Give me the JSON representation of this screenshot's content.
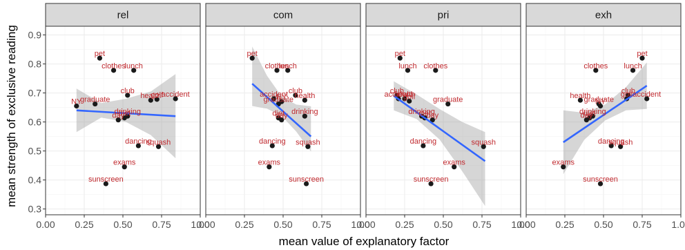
{
  "chart_data": {
    "type": "scatter",
    "facet_labels": [
      "rel",
      "com",
      "pri",
      "exh"
    ],
    "xlabel": "mean value of explanatory factor",
    "ylabel": "mean strength of exclusive reading",
    "xlim": [
      0,
      1
    ],
    "ylim": [
      0.28,
      0.93
    ],
    "xticks": [
      0,
      0.25,
      0.5,
      0.75,
      1
    ],
    "xtick_labels": [
      "0.00",
      "0.25",
      "0.50",
      "0.75",
      "1.00"
    ],
    "yticks": [
      0.3,
      0.4,
      0.5,
      0.6,
      0.7,
      0.8,
      0.9
    ],
    "ytick_labels": [
      "0.3",
      "0.4",
      "0.5",
      "0.6",
      "0.7",
      "0.8",
      "0.9"
    ],
    "colors": {
      "point": "#1a1a1a",
      "label": "#c0292e",
      "fit": "#3366ff",
      "ribbon": "#999999"
    },
    "panels": [
      {
        "name": "rel",
        "points": [
          {
            "label": "NY",
            "x": 0.2,
            "y": 0.655
          },
          {
            "label": "graduate",
            "x": 0.32,
            "y": 0.662
          },
          {
            "label": "pet",
            "x": 0.35,
            "y": 0.82
          },
          {
            "label": "clothes",
            "x": 0.44,
            "y": 0.778
          },
          {
            "label": "lunch",
            "x": 0.57,
            "y": 0.778
          },
          {
            "label": "club",
            "x": 0.53,
            "y": 0.692
          },
          {
            "label": "health",
            "x": 0.68,
            "y": 0.675
          },
          {
            "label": "golf",
            "x": 0.72,
            "y": 0.678
          },
          {
            "label": "accident",
            "x": 0.84,
            "y": 0.68
          },
          {
            "label": "drinking",
            "x": 0.53,
            "y": 0.62
          },
          {
            "label": "diet",
            "x": 0.51,
            "y": 0.614
          },
          {
            "label": "day",
            "x": 0.47,
            "y": 0.607
          },
          {
            "label": "dancing",
            "x": 0.6,
            "y": 0.518
          },
          {
            "label": "squash",
            "x": 0.73,
            "y": 0.515
          },
          {
            "label": "exams",
            "x": 0.51,
            "y": 0.445
          },
          {
            "label": "sunscreen",
            "x": 0.39,
            "y": 0.387
          }
        ],
        "fit": {
          "x": [
            0.2,
            0.84
          ],
          "y": [
            0.64,
            0.62
          ]
        },
        "ribbon": {
          "x": [
            0.2,
            0.36,
            0.52,
            0.68,
            0.84
          ],
          "lower": [
            0.565,
            0.615,
            0.6,
            0.555,
            0.475
          ],
          "upper": [
            0.715,
            0.665,
            0.68,
            0.705,
            0.765
          ]
        }
      },
      {
        "name": "com",
        "points": [
          {
            "label": "pet",
            "x": 0.3,
            "y": 0.82
          },
          {
            "label": "clothes",
            "x": 0.46,
            "y": 0.778
          },
          {
            "label": "lunch",
            "x": 0.53,
            "y": 0.778
          },
          {
            "label": "club",
            "x": 0.58,
            "y": 0.692
          },
          {
            "label": "accident",
            "x": 0.44,
            "y": 0.68
          },
          {
            "label": "health",
            "x": 0.64,
            "y": 0.675
          },
          {
            "label": "NY",
            "x": 0.49,
            "y": 0.67
          },
          {
            "label": "graduate",
            "x": 0.47,
            "y": 0.662
          },
          {
            "label": "diet",
            "x": 0.47,
            "y": 0.614
          },
          {
            "label": "drinking",
            "x": 0.64,
            "y": 0.62
          },
          {
            "label": "day",
            "x": 0.49,
            "y": 0.607
          },
          {
            "label": "dancing",
            "x": 0.43,
            "y": 0.518
          },
          {
            "label": "squash",
            "x": 0.66,
            "y": 0.515
          },
          {
            "label": "exams",
            "x": 0.41,
            "y": 0.445
          },
          {
            "label": "sunscreen",
            "x": 0.65,
            "y": 0.387
          }
        ],
        "fit": {
          "x": [
            0.3,
            0.68
          ],
          "y": [
            0.732,
            0.55
          ]
        },
        "ribbon": {
          "x": [
            0.3,
            0.395,
            0.49,
            0.585,
            0.68
          ],
          "lower": [
            0.655,
            0.646,
            0.621,
            0.567,
            0.498
          ],
          "upper": [
            0.86,
            0.76,
            0.688,
            0.66,
            0.654
          ]
        }
      },
      {
        "name": "pri",
        "points": [
          {
            "label": "pet",
            "x": 0.22,
            "y": 0.82
          },
          {
            "label": "lunch",
            "x": 0.27,
            "y": 0.778
          },
          {
            "label": "clothes",
            "x": 0.45,
            "y": 0.778
          },
          {
            "label": "club",
            "x": 0.2,
            "y": 0.692
          },
          {
            "label": "accident",
            "x": 0.21,
            "y": 0.68
          },
          {
            "label": "health",
            "x": 0.25,
            "y": 0.68
          },
          {
            "label": "golf",
            "x": 0.28,
            "y": 0.672
          },
          {
            "label": "graduate",
            "x": 0.53,
            "y": 0.662
          },
          {
            "label": "drinking",
            "x": 0.36,
            "y": 0.62
          },
          {
            "label": "diet",
            "x": 0.38,
            "y": 0.614
          },
          {
            "label": "day",
            "x": 0.43,
            "y": 0.607
          },
          {
            "label": "dancing",
            "x": 0.37,
            "y": 0.518
          },
          {
            "label": "squash",
            "x": 0.76,
            "y": 0.515
          },
          {
            "label": "exams",
            "x": 0.57,
            "y": 0.445
          },
          {
            "label": "sunscreen",
            "x": 0.42,
            "y": 0.387
          }
        ],
        "fit": {
          "x": [
            0.18,
            0.77
          ],
          "y": [
            0.69,
            0.465
          ]
        },
        "ribbon": {
          "x": [
            0.18,
            0.3275,
            0.475,
            0.6225,
            0.77
          ],
          "lower": [
            0.64,
            0.61,
            0.54,
            0.43,
            0.31
          ],
          "upper": [
            0.74,
            0.695,
            0.645,
            0.6,
            0.565
          ]
        }
      },
      {
        "name": "exh",
        "points": [
          {
            "label": "pet",
            "x": 0.75,
            "y": 0.82
          },
          {
            "label": "clothes",
            "x": 0.45,
            "y": 0.778
          },
          {
            "label": "lunch",
            "x": 0.69,
            "y": 0.778
          },
          {
            "label": "club",
            "x": 0.66,
            "y": 0.692
          },
          {
            "label": "health",
            "x": 0.35,
            "y": 0.675
          },
          {
            "label": "graduate",
            "x": 0.47,
            "y": 0.662
          },
          {
            "label": "golf",
            "x": 0.65,
            "y": 0.68
          },
          {
            "label": "accident",
            "x": 0.78,
            "y": 0.68
          },
          {
            "label": "NY",
            "x": 0.48,
            "y": 0.655
          },
          {
            "label": "drinking",
            "x": 0.43,
            "y": 0.62
          },
          {
            "label": "diet",
            "x": 0.41,
            "y": 0.614
          },
          {
            "label": "day",
            "x": 0.39,
            "y": 0.607
          },
          {
            "label": "dancing",
            "x": 0.55,
            "y": 0.518
          },
          {
            "label": "squash",
            "x": 0.61,
            "y": 0.515
          },
          {
            "label": "exams",
            "x": 0.24,
            "y": 0.445
          },
          {
            "label": "sunscreen",
            "x": 0.48,
            "y": 0.387
          }
        ],
        "fit": {
          "x": [
            0.24,
            0.78
          ],
          "y": [
            0.53,
            0.725
          ]
        },
        "ribbon": {
          "x": [
            0.24,
            0.375,
            0.51,
            0.645,
            0.78
          ],
          "lower": [
            0.42,
            0.538,
            0.605,
            0.64,
            0.645
          ],
          "upper": [
            0.64,
            0.632,
            0.66,
            0.72,
            0.805
          ]
        }
      }
    ]
  }
}
